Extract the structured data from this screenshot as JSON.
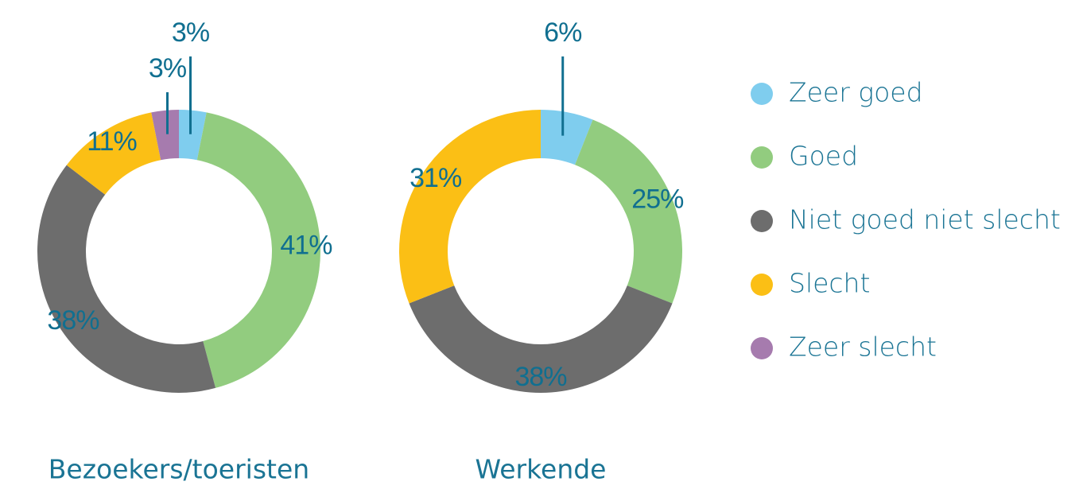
{
  "chart_data": [
    {
      "type": "donut",
      "title": "Bezoekers/toeristen",
      "categories": [
        "Zeer goed",
        "Goed",
        "Niet goed niet slecht",
        "Slecht",
        "Zeer slecht"
      ],
      "values": [
        3,
        41,
        38,
        11,
        3
      ],
      "value_labels": [
        "3%",
        "41%",
        "38%",
        "11%",
        "3%"
      ],
      "colors": [
        "#7fcdee",
        "#92cc7f",
        "#6d6d6d",
        "#fbbf15",
        "#a67bae"
      ]
    },
    {
      "type": "donut",
      "title": "Werkende",
      "categories": [
        "Zeer goed",
        "Goed",
        "Niet goed niet slecht",
        "Slecht",
        "Zeer slecht"
      ],
      "values": [
        6,
        25,
        38,
        31,
        null
      ],
      "value_labels": [
        "6%",
        "25%",
        "38%",
        "31%",
        null
      ],
      "colors": [
        "#7fcdee",
        "#92cc7f",
        "#6d6d6d",
        "#fbbf15",
        "#a67bae"
      ]
    }
  ]
}
